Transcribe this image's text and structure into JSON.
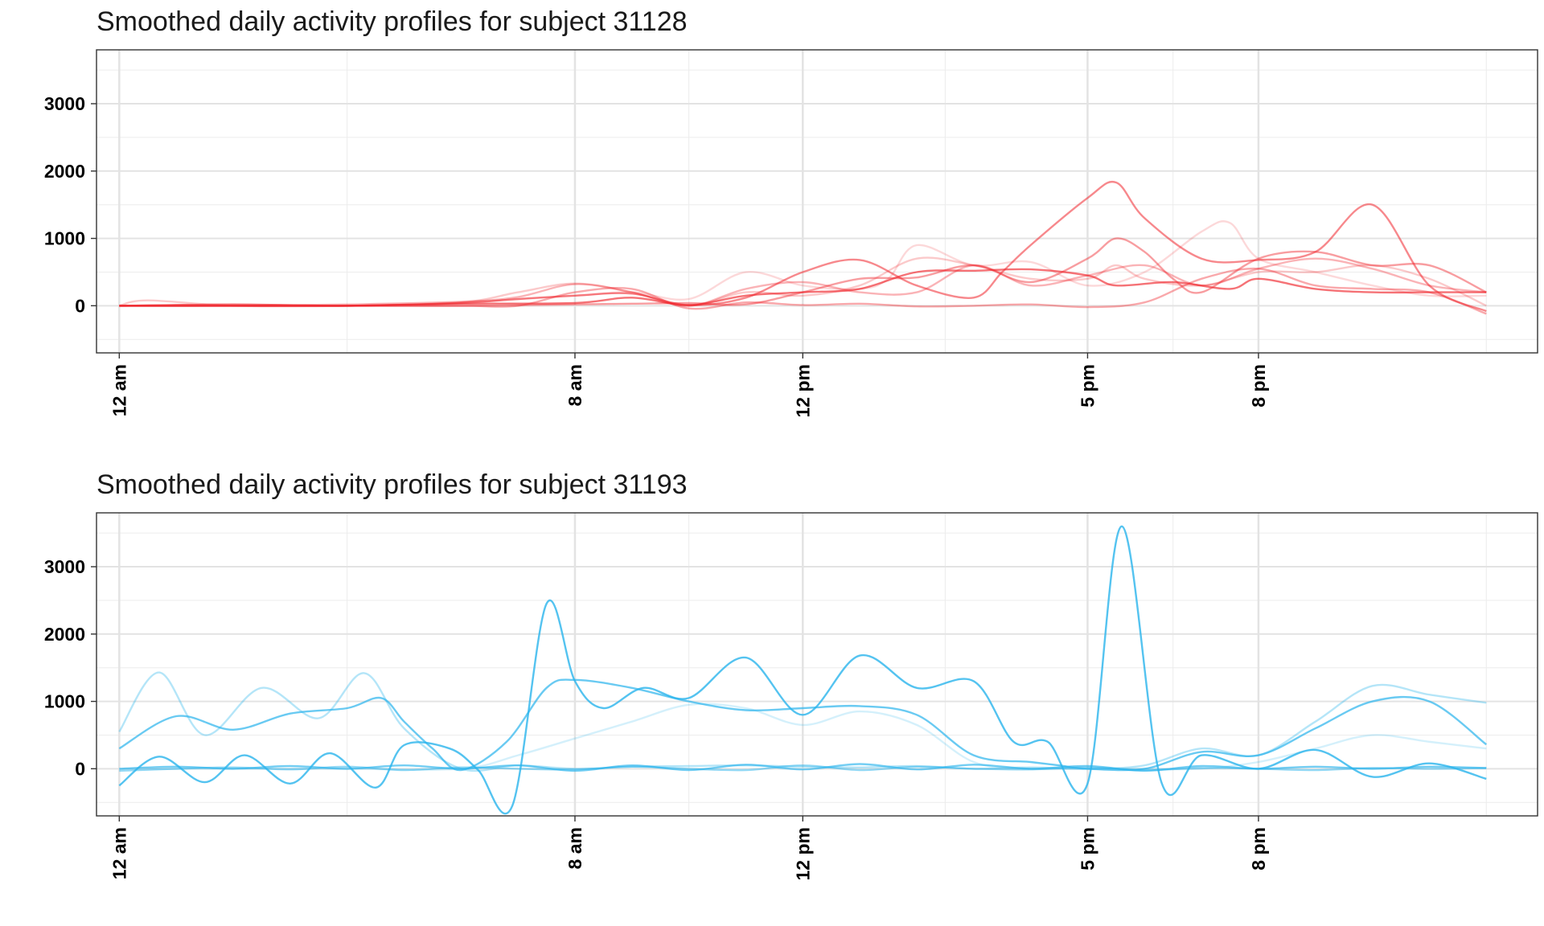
{
  "chart_data": [
    {
      "type": "line",
      "title": "Smoothed daily activity profiles for subject 31128",
      "xlabel": "",
      "ylabel": "",
      "x_unit": "hour of day",
      "xlim": [
        -0.4,
        24.9
      ],
      "ylim": [
        -700,
        3800
      ],
      "x_ticks": [
        {
          "value": 0,
          "label": "12 am"
        },
        {
          "value": 8,
          "label": "8 am"
        },
        {
          "value": 12,
          "label": "12 pm"
        },
        {
          "value": 17,
          "label": "5 pm"
        },
        {
          "value": 20,
          "label": "8 pm"
        }
      ],
      "x_minor": [
        4,
        10,
        14.5,
        18.5,
        24
      ],
      "y_ticks": [
        0,
        1000,
        2000,
        3000
      ],
      "y_minor": [
        -500,
        500,
        1500,
        2500,
        3500
      ],
      "grid": true,
      "legend": "none",
      "color": "#f0262d",
      "series": [
        {
          "opacity": 0.65,
          "x": [
            0,
            2,
            4,
            6,
            8,
            9,
            10,
            11,
            12,
            13,
            14,
            15,
            16,
            17,
            17.5,
            18.5,
            19.5,
            20,
            21,
            22,
            23,
            24
          ],
          "values": [
            0,
            20,
            0,
            30,
            40,
            120,
            10,
            150,
            200,
            250,
            500,
            520,
            540,
            450,
            300,
            350,
            250,
            400,
            250,
            200,
            200,
            200
          ]
        },
        {
          "opacity": 0.55,
          "x": [
            0,
            2,
            4,
            6,
            7,
            8,
            9,
            10,
            11,
            12,
            13,
            14,
            15,
            15.5,
            16,
            17,
            17.5,
            18,
            19,
            20,
            21,
            22,
            23,
            24
          ],
          "values": [
            0,
            0,
            0,
            40,
            100,
            150,
            180,
            10,
            120,
            500,
            680,
            300,
            120,
            500,
            900,
            1600,
            1830,
            1300,
            700,
            680,
            800,
            1500,
            300,
            -80
          ]
        },
        {
          "opacity": 0.45,
          "x": [
            0,
            2,
            4,
            6,
            8,
            9,
            10,
            11,
            12,
            13,
            14,
            15,
            16,
            17,
            17.5,
            18,
            18.5,
            19,
            20,
            21,
            22,
            23,
            24
          ],
          "values": [
            0,
            0,
            0,
            0,
            20,
            30,
            40,
            20,
            200,
            400,
            420,
            600,
            350,
            700,
            1000,
            800,
            400,
            200,
            700,
            800,
            600,
            600,
            200
          ]
        },
        {
          "opacity": 0.4,
          "x": [
            0,
            2,
            4,
            6,
            7,
            8,
            9,
            10,
            11,
            12,
            13,
            14,
            15,
            16,
            17,
            18,
            19,
            20,
            21,
            22,
            23,
            24
          ],
          "values": [
            0,
            0,
            0,
            0,
            0,
            200,
            250,
            -40,
            50,
            10,
            30,
            -10,
            0,
            20,
            -20,
            50,
            400,
            550,
            300,
            250,
            200,
            -120
          ]
        },
        {
          "opacity": 0.35,
          "x": [
            0,
            2,
            4,
            6,
            7,
            8,
            9,
            10,
            11,
            12,
            13,
            14,
            15,
            16,
            17,
            18,
            19,
            20,
            21,
            22,
            23,
            24
          ],
          "values": [
            0,
            0,
            20,
            60,
            130,
            320,
            200,
            0,
            250,
            350,
            200,
            200,
            600,
            300,
            450,
            600,
            300,
            550,
            700,
            550,
            300,
            200
          ]
        },
        {
          "opacity": 0.25,
          "x": [
            0,
            0.5,
            2,
            4,
            6,
            7,
            8,
            9,
            10,
            11,
            12,
            13,
            14,
            15,
            16,
            17,
            17.5,
            18,
            19,
            20,
            21,
            22,
            23,
            24
          ],
          "values": [
            0,
            80,
            0,
            0,
            50,
            200,
            330,
            200,
            0,
            200,
            150,
            300,
            700,
            600,
            400,
            400,
            600,
            400,
            300,
            500,
            500,
            600,
            400,
            0
          ]
        },
        {
          "opacity": 0.18,
          "x": [
            0,
            2,
            4,
            6,
            8,
            9,
            10,
            11,
            12,
            13,
            13.5,
            14,
            15,
            16,
            17,
            18,
            19,
            19.5,
            20,
            21,
            22,
            23,
            24
          ],
          "values": [
            0,
            0,
            0,
            50,
            150,
            200,
            100,
            500,
            300,
            250,
            400,
            900,
            600,
            650,
            300,
            500,
            1100,
            1230,
            700,
            500,
            300,
            150,
            150
          ]
        }
      ]
    },
    {
      "type": "line",
      "title": "Smoothed daily activity profiles for subject 31193",
      "xlabel": "",
      "ylabel": "",
      "x_unit": "hour of day",
      "xlim": [
        -0.4,
        24.9
      ],
      "ylim": [
        -700,
        3800
      ],
      "x_ticks": [
        {
          "value": 0,
          "label": "12 am"
        },
        {
          "value": 8,
          "label": "8 am"
        },
        {
          "value": 12,
          "label": "12 pm"
        },
        {
          "value": 17,
          "label": "5 pm"
        },
        {
          "value": 20,
          "label": "8 pm"
        }
      ],
      "x_minor": [
        4,
        10,
        14.5,
        18.5,
        24
      ],
      "y_ticks": [
        0,
        1000,
        2000,
        3000
      ],
      "y_minor": [
        -500,
        500,
        1500,
        2500,
        3500
      ],
      "grid": true,
      "legend": "none",
      "color": "#29b4ec",
      "series": [
        {
          "opacity": 0.8,
          "x": [
            0,
            0.7,
            1.5,
            2.2,
            3,
            3.7,
            4.5,
            5,
            5.8,
            6.3,
            6.9,
            7.5,
            8,
            8.5,
            9.2,
            10,
            11,
            12,
            13,
            14,
            15,
            15.7,
            16.3,
            17,
            17.6,
            18.3,
            19,
            20,
            21,
            22,
            23,
            24
          ],
          "values": [
            -250,
            180,
            -200,
            200,
            -220,
            230,
            -280,
            350,
            300,
            -20,
            -550,
            2450,
            1300,
            900,
            1200,
            1050,
            1650,
            800,
            1680,
            1200,
            1300,
            400,
            400,
            -220,
            3600,
            -210,
            200,
            0,
            280,
            -120,
            80,
            -150
          ]
        },
        {
          "opacity": 0.7,
          "x": [
            0,
            1,
            2,
            3,
            4,
            4.6,
            5,
            5.5,
            6,
            6.8,
            7.5,
            8,
            9,
            10,
            11,
            12,
            13,
            14,
            15,
            16,
            16.5,
            17,
            18,
            19,
            20,
            21,
            22,
            23,
            24
          ],
          "values": [
            300,
            780,
            580,
            820,
            900,
            1050,
            700,
            300,
            -20,
            400,
            1200,
            1320,
            1200,
            1000,
            870,
            900,
            930,
            800,
            200,
            100,
            50,
            0,
            0,
            250,
            200,
            600,
            1000,
            1000,
            360
          ]
        },
        {
          "opacity": 0.65,
          "x": [
            0,
            1,
            2,
            3,
            4,
            5,
            6,
            7,
            8,
            9,
            10,
            11,
            12,
            13,
            14,
            15,
            16,
            17,
            18,
            19,
            20,
            21,
            22,
            23,
            24
          ],
          "values": [
            0,
            30,
            0,
            40,
            0,
            50,
            0,
            50,
            -30,
            50,
            -20,
            60,
            -10,
            70,
            -10,
            60,
            0,
            40,
            -30,
            40,
            0,
            30,
            0,
            30,
            10
          ]
        },
        {
          "opacity": 0.5,
          "x": [
            0,
            1,
            2,
            3,
            4,
            5,
            6,
            7,
            8,
            9,
            10,
            11,
            12,
            13,
            14,
            15,
            16,
            17,
            18,
            19,
            20,
            21,
            22,
            23,
            24
          ],
          "values": [
            -30,
            0,
            20,
            -10,
            30,
            -20,
            20,
            0,
            -10,
            30,
            0,
            -20,
            50,
            -20,
            30,
            0,
            -10,
            20,
            -20,
            10,
            0,
            -20,
            10,
            0,
            10
          ]
        },
        {
          "opacity": 0.35,
          "x": [
            0,
            0.7,
            1.5,
            2.5,
            3.5,
            4.3,
            5,
            6,
            7,
            8,
            9,
            10,
            11,
            12,
            13,
            14,
            15,
            16,
            17,
            18,
            19,
            20,
            21,
            22,
            23,
            24
          ],
          "values": [
            550,
            1430,
            500,
            1200,
            750,
            1420,
            600,
            0,
            50,
            0,
            30,
            40,
            50,
            30,
            20,
            40,
            0,
            20,
            0,
            50,
            300,
            200,
            700,
            1230,
            1100,
            980
          ]
        },
        {
          "opacity": 0.2,
          "x": [
            0,
            2,
            4,
            6,
            7,
            8,
            9,
            10,
            11,
            12,
            13,
            14,
            15,
            16,
            17,
            18,
            19,
            20,
            21,
            22,
            23,
            24
          ],
          "values": [
            0,
            0,
            0,
            0,
            200,
            450,
            700,
            950,
            900,
            650,
            850,
            650,
            100,
            0,
            0,
            0,
            0,
            100,
            300,
            500,
            400,
            300
          ]
        }
      ]
    }
  ]
}
